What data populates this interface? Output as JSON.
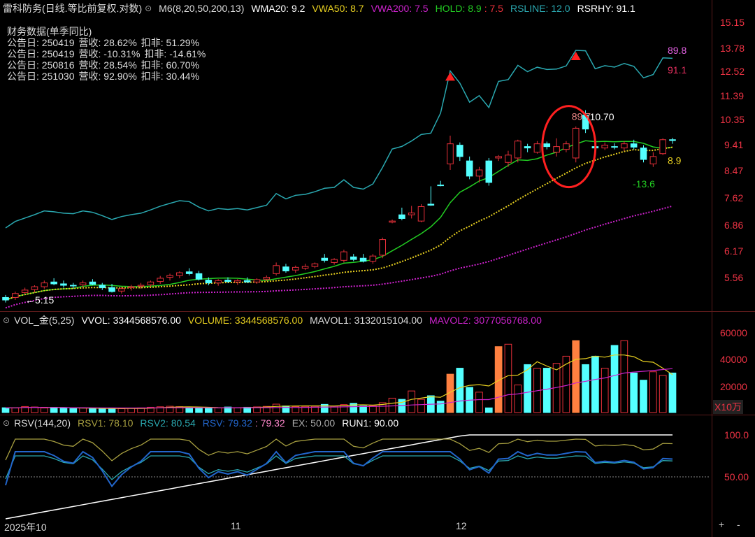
{
  "header": {
    "title": "雷科防务(日线.等比前复权.对数)",
    "ma_label": "M6(8,20,50,200,13)",
    "wma20": "WMA20: 9.2",
    "vwa50": "VWA50: 8.7",
    "vwa200": "VWA200: 7.5",
    "hold": "HOLD: 8.9",
    "hold2": ": 7.5",
    "rsline": "RSLINE: 12.0",
    "rsrhy": "RSRHY: 91.1"
  },
  "finance": {
    "heading": "财务数据(单季同比)",
    "rows": [
      {
        "date": "公告日: 250419",
        "rev": "营收: 28.62%",
        "net": "扣非: 51.29%"
      },
      {
        "date": "公告日: 250419",
        "rev": "营收: -10.31%",
        "net": "扣非: -14.61%"
      },
      {
        "date": "公告日: 250816",
        "rev": "营收: 28.54%",
        "net": "扣非: 60.70%"
      },
      {
        "date": "公告日: 251030",
        "rev": "营收: 92.90%",
        "net": "扣非: 30.44%"
      }
    ]
  },
  "price_axis": [
    "15.15",
    "13.78",
    "12.52",
    "11.39",
    "10.35",
    "9.41",
    "8.47",
    "7.62",
    "6.86",
    "6.17",
    "5.56"
  ],
  "annotations": {
    "low": "5.15",
    "high_pct": "89.7",
    "high_price": "10.70",
    "rs_89": "89.8",
    "rs_91": "91.1",
    "hold_val": "8.9",
    "neg": "-13.6"
  },
  "volume": {
    "label": "VOL_金(5,25)",
    "vvol": "VVOL: 3344568576.00",
    "volume": "VOLUME: 3344568576.00",
    "mavol1": "MAVOL1: 3132015104.00",
    "mavol2": "MAVOL2: 3077056768.00",
    "axis": [
      "60000",
      "40000",
      "20000"
    ],
    "unit": "X10万"
  },
  "rsv": {
    "label": "RSV(144,20)",
    "rsv1": "RSV1: 78.10",
    "rsv2": "RSV2: 80.54",
    "rsv": "RSV: 79.32",
    "rsv_b": ": 79.32",
    "ex": "EX: 50.00",
    "run1": "RUN1: 90.00",
    "axis": [
      "100.0",
      "50.00"
    ]
  },
  "xaxis": {
    "labels": [
      "2025年10",
      "11",
      "12"
    ]
  },
  "controls": {
    "plus": "+",
    "minus": "-"
  },
  "colors": {
    "up": "#e8303a",
    "down": "#54ffff",
    "rsline": "#2aa8b0",
    "wma": "#22cc22",
    "vwa50": "#e8d020",
    "vwa200": "#cc22cc"
  },
  "chart_data": {
    "type": "candlestick",
    "price_scale": "log",
    "ylim": [
      5.0,
      15.5
    ],
    "candles": [
      [
        5.2,
        5.25,
        5.1,
        5.15
      ],
      [
        5.2,
        5.32,
        5.15,
        5.28
      ],
      [
        5.3,
        5.4,
        5.25,
        5.35
      ],
      [
        5.36,
        5.45,
        5.3,
        5.42
      ],
      [
        5.42,
        5.55,
        5.38,
        5.5
      ],
      [
        5.52,
        5.6,
        5.45,
        5.48
      ],
      [
        5.48,
        5.55,
        5.4,
        5.45
      ],
      [
        5.45,
        5.5,
        5.38,
        5.44
      ],
      [
        5.46,
        5.55,
        5.4,
        5.5
      ],
      [
        5.52,
        5.58,
        5.45,
        5.47
      ],
      [
        5.45,
        5.5,
        5.35,
        5.4
      ],
      [
        5.4,
        5.48,
        5.3,
        5.32
      ],
      [
        5.33,
        5.42,
        5.28,
        5.38
      ],
      [
        5.4,
        5.46,
        5.34,
        5.42
      ],
      [
        5.43,
        5.5,
        5.38,
        5.45
      ],
      [
        5.46,
        5.55,
        5.42,
        5.52
      ],
      [
        5.53,
        5.65,
        5.48,
        5.6
      ],
      [
        5.62,
        5.7,
        5.55,
        5.66
      ],
      [
        5.66,
        5.75,
        5.6,
        5.72
      ],
      [
        5.74,
        5.82,
        5.66,
        5.7
      ],
      [
        5.7,
        5.76,
        5.55,
        5.58
      ],
      [
        5.56,
        5.62,
        5.45,
        5.5
      ],
      [
        5.5,
        5.58,
        5.44,
        5.55
      ],
      [
        5.56,
        5.62,
        5.5,
        5.53
      ],
      [
        5.52,
        5.58,
        5.46,
        5.55
      ],
      [
        5.55,
        5.62,
        5.5,
        5.52
      ],
      [
        5.52,
        5.6,
        5.48,
        5.57
      ],
      [
        5.58,
        5.66,
        5.54,
        5.62
      ],
      [
        5.7,
        5.95,
        5.66,
        5.88
      ],
      [
        5.85,
        5.92,
        5.72,
        5.76
      ],
      [
        5.78,
        5.88,
        5.72,
        5.84
      ],
      [
        5.82,
        5.92,
        5.78,
        5.86
      ],
      [
        5.86,
        5.95,
        5.82,
        5.92
      ],
      [
        6.05,
        6.15,
        5.95,
        6.0
      ],
      [
        5.95,
        6.05,
        5.9,
        6.02
      ],
      [
        6.0,
        6.25,
        5.95,
        6.2
      ],
      [
        6.08,
        6.15,
        5.98,
        6.02
      ],
      [
        6.05,
        6.15,
        5.95,
        5.98
      ],
      [
        5.98,
        6.15,
        5.92,
        6.1
      ],
      [
        6.12,
        6.55,
        6.05,
        6.5
      ],
      [
        6.95,
        7.02,
        6.92,
        6.98
      ],
      [
        7.15,
        7.35,
        7.0,
        7.05
      ],
      [
        7.15,
        7.4,
        7.05,
        7.2
      ],
      [
        6.98,
        7.45,
        6.95,
        7.38
      ],
      [
        7.45,
        7.98,
        7.4,
        7.42
      ],
      [
        8.02,
        8.15,
        7.98,
        8.0
      ],
      [
        8.7,
        9.7,
        8.5,
        9.4
      ],
      [
        9.35,
        9.45,
        8.8,
        8.95
      ],
      [
        8.8,
        8.95,
        8.2,
        8.3
      ],
      [
        8.3,
        8.6,
        8.1,
        8.5
      ],
      [
        8.8,
        8.9,
        8.0,
        8.1
      ],
      [
        8.9,
        9.0,
        8.8,
        8.95
      ],
      [
        8.75,
        9.15,
        8.6,
        9.0
      ],
      [
        8.9,
        9.55,
        8.75,
        9.5
      ],
      [
        9.3,
        9.4,
        9.1,
        9.25
      ],
      [
        9.1,
        9.5,
        9.05,
        9.4
      ],
      [
        9.4,
        9.48,
        9.2,
        9.3
      ],
      [
        9.1,
        9.6,
        8.95,
        9.3
      ],
      [
        9.2,
        9.5,
        9.1,
        9.4
      ],
      [
        8.9,
        10.05,
        8.75,
        9.98
      ],
      [
        10.5,
        10.7,
        9.8,
        9.95
      ],
      [
        9.3,
        9.4,
        9.1,
        9.25
      ],
      [
        9.25,
        9.45,
        9.18,
        9.35
      ],
      [
        9.3,
        9.42,
        9.2,
        9.28
      ],
      [
        9.25,
        9.5,
        9.15,
        9.4
      ],
      [
        9.4,
        9.55,
        9.2,
        9.28
      ],
      [
        9.25,
        9.35,
        8.75,
        8.85
      ],
      [
        8.7,
        9.1,
        8.6,
        8.95
      ],
      [
        9.05,
        9.6,
        9.0,
        9.55
      ],
      [
        9.55,
        9.62,
        9.4,
        9.52
      ]
    ],
    "volume": [
      4000,
      3800,
      5000,
      4600,
      3800,
      4200,
      3500,
      3300,
      3900,
      3600,
      3300,
      3100,
      3200,
      3600,
      3900,
      4400,
      4800,
      5200,
      4900,
      4300,
      3800,
      3600,
      3900,
      4600,
      4100,
      4400,
      4700,
      5100,
      7000,
      5500,
      5000,
      5100,
      5200,
      6800,
      5400,
      6600,
      7700,
      5500,
      5600,
      8200,
      12000,
      11000,
      18000,
      11000,
      14000,
      9500,
      32000,
      37000,
      21000,
      17000,
      3900,
      55000,
      57000,
      23000,
      40000,
      37000,
      37000,
      41000,
      47000,
      60000,
      40000,
      47000,
      37000,
      56000,
      60000,
      33000,
      27000,
      34000,
      31000,
      33000
    ],
    "volume_ylim": [
      0,
      70000
    ],
    "rsv_ylim": [
      0,
      110
    ],
    "rsv_ex": 50,
    "rsv_run1": 90
  }
}
